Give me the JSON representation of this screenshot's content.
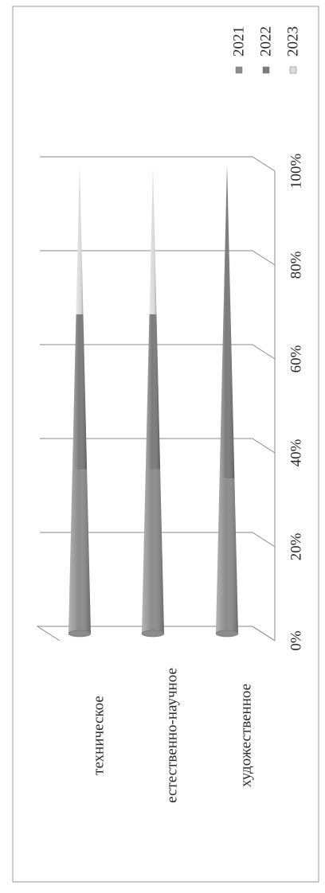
{
  "chart_data": {
    "type": "bar",
    "subtype": "stacked-100-percent-cone",
    "orientation": "horizontal",
    "rotation": "page rotated 90 degrees clockwise",
    "categories": [
      "техническое",
      "естественно-научное",
      "художественное"
    ],
    "series": [
      {
        "name": "2021",
        "values": [
          35,
          35,
          33
        ],
        "color": "#8c8c8c"
      },
      {
        "name": "2022",
        "values": [
          33,
          33,
          66
        ],
        "color": "#7b7b7b"
      },
      {
        "name": "2023",
        "values": [
          32,
          32,
          1
        ],
        "color": "#dcdcdc"
      }
    ],
    "value_axis": {
      "ticks": [
        "0%",
        "20%",
        "40%",
        "60%",
        "80%",
        "100%"
      ],
      "range": [
        0,
        100
      ]
    },
    "grid": true,
    "legend": {
      "position": "top",
      "entries": [
        "2021",
        "2022",
        "2023"
      ]
    },
    "title": "",
    "xlabel": "",
    "ylabel": ""
  }
}
